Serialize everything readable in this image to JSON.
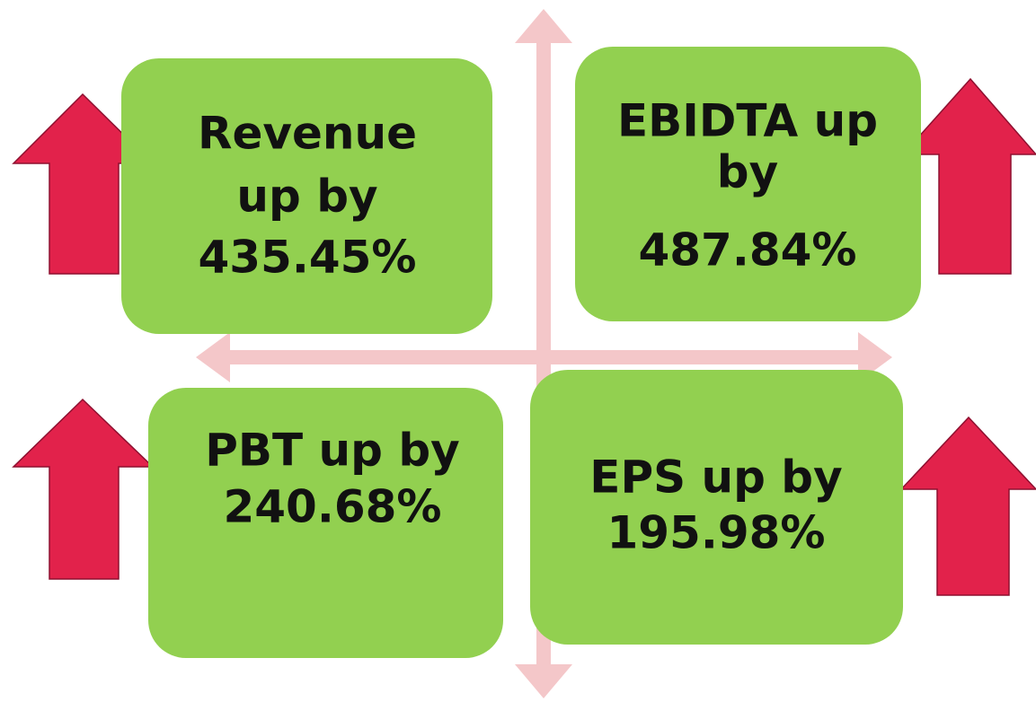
{
  "boxes": [
    {
      "lines": [
        "Revenue",
        "up by",
        "435.45%"
      ]
    },
    {
      "lines": [
        "EBIDTA up",
        "by",
        "487.84%"
      ]
    },
    {
      "lines": [
        "PBT up by",
        "240.68%"
      ]
    },
    {
      "lines": [
        "EPS up by",
        "195.98%"
      ]
    }
  ]
}
